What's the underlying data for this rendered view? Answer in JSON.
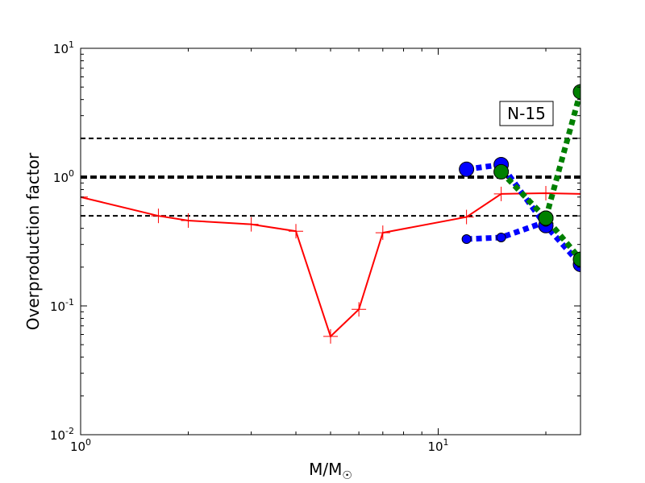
{
  "chart_data": {
    "type": "line",
    "xscale": "log",
    "yscale": "log",
    "xlim": [
      1,
      25
    ],
    "ylim": [
      0.01,
      10
    ],
    "xlabel": "M/M",
    "xlabel_sub": "☉",
    "ylabel": "Overproduction factor",
    "x_ticks": [
      {
        "value": 1,
        "base": "10",
        "exp": "0"
      },
      {
        "value": 10,
        "base": "10",
        "exp": "1"
      }
    ],
    "y_ticks": [
      {
        "value": 0.01,
        "base": "10",
        "exp": "-2"
      },
      {
        "value": 0.1,
        "base": "10",
        "exp": "-1"
      },
      {
        "value": 1,
        "base": "10",
        "exp": "0"
      },
      {
        "value": 10,
        "base": "10",
        "exp": "1"
      }
    ],
    "reference_lines": [
      {
        "y": 2.0,
        "style": "dashed",
        "width": 2
      },
      {
        "y": 1.0,
        "style": "dashed",
        "width": 4
      },
      {
        "y": 0.5,
        "style": "dashed",
        "width": 2
      }
    ],
    "annotation": "N-15",
    "grid": false,
    "series": [
      {
        "marker": "plus",
        "color": "#ff0000",
        "line": "solid",
        "x": [
          1.0,
          1.65,
          2.0,
          3.0,
          4.0,
          5.0,
          6.0,
          7.0,
          12.0,
          15.0,
          20.0,
          25.0
        ],
        "y": [
          0.7,
          0.5,
          0.46,
          0.43,
          0.38,
          0.058,
          0.094,
          0.37,
          0.49,
          0.74,
          0.75,
          0.74
        ]
      },
      {
        "marker": "circle",
        "marker_size": "large",
        "color": "#0000ff",
        "line": "dotted",
        "x": [
          12,
          15,
          20,
          25
        ],
        "y": [
          1.15,
          1.25,
          0.42,
          0.21
        ]
      },
      {
        "marker": "circle",
        "marker_size": "small",
        "color": "#0000ff",
        "line": "dotted",
        "x": [
          12,
          15,
          20
        ],
        "y": [
          0.33,
          0.34,
          0.45
        ]
      },
      {
        "marker": "circle",
        "marker_size": "large",
        "color": "#008000",
        "line": "dotted",
        "x": [
          15,
          20,
          25
        ],
        "y": [
          1.1,
          0.48,
          0.23
        ]
      },
      {
        "marker": "circle",
        "marker_size": "large",
        "color": "#008000",
        "line": "dotted",
        "x": [
          20,
          25
        ],
        "y": [
          0.48,
          4.6
        ]
      }
    ]
  }
}
